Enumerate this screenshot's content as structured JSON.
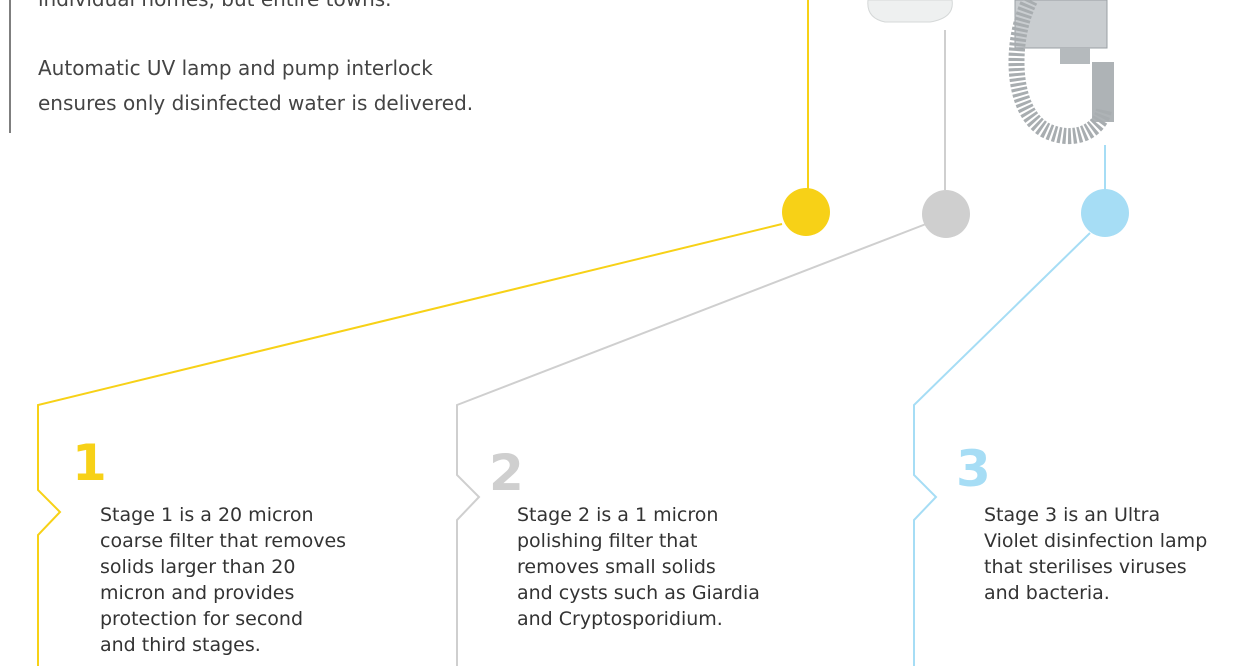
{
  "intro": {
    "cut_line": "individual homes, but entire towns.",
    "paragraph": [
      "Automatic UV lamp and pump interlock",
      "ensures only disinfected water is delivered."
    ]
  },
  "stages": [
    {
      "number": "1",
      "color": "#f7d117",
      "lines": [
        "Stage 1 is a 20 micron",
        "coarse filter that removes",
        "solids larger than 20",
        "micron and provides",
        "protection for second",
        "and third stages."
      ]
    },
    {
      "number": "2",
      "color": "#cfcfcf",
      "lines": [
        "Stage 2 is a 1 micron",
        "polishing filter that",
        "removes small solids",
        "and cysts such as Giardia",
        "and Cryptosporidium."
      ]
    },
    {
      "number": "3",
      "color": "#a6ddf5",
      "lines": [
        "Stage 3 is an Ultra",
        "Violet disinfection lamp",
        "that sterilises viruses",
        "and bacteria."
      ]
    }
  ]
}
